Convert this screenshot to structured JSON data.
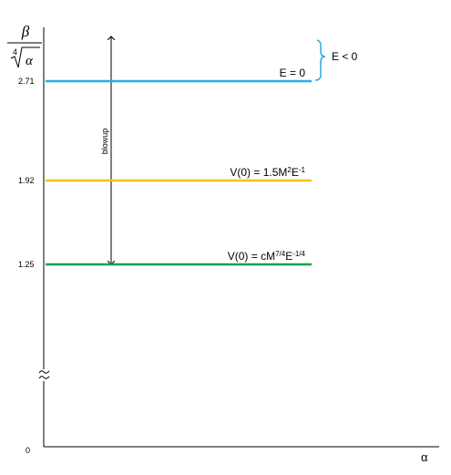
{
  "axis": {
    "y_label_numerator": "β",
    "y_label_denominator": "α",
    "root_index": "4",
    "x_label": "α",
    "origin_label": "0"
  },
  "levels": [
    {
      "tick": "2.71",
      "label_parts": [
        "E = 0"
      ],
      "color": "#29abe2"
    },
    {
      "tick": "1.92",
      "label_parts": [
        "V(0) = 1.5M",
        "2",
        "E",
        "-1"
      ],
      "color": "#ffc000"
    },
    {
      "tick": "1.25",
      "label_parts": [
        "V(0) = cM",
        "7/4",
        "E",
        "-1/4"
      ],
      "color": "#00a651"
    }
  ],
  "annotations": {
    "arrow_label": "blowup",
    "brace_label": "E < 0"
  }
}
